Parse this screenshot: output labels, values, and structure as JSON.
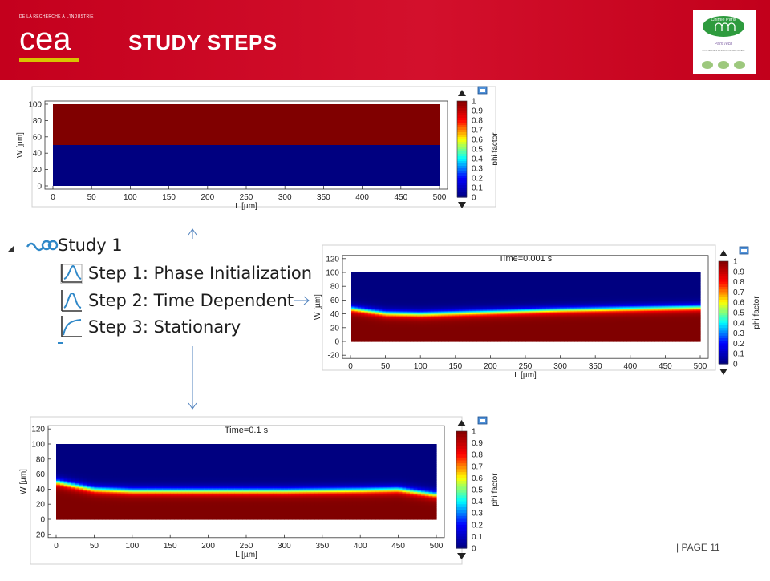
{
  "header": {
    "org_tagline": "DE LA RECHERCHE À L'INDUSTRIE",
    "logo_text": "cea",
    "title": "STUDY STEPS",
    "partner_logo": {
      "line1": "Chimie Paris",
      "line2": "ParisTech",
      "line3": "ÉCOLE NATIONALE SUPÉRIEURE DE CHIMIE DE PARIS"
    }
  },
  "tree": {
    "study_label": "Study 1",
    "steps": [
      {
        "label": "Step 1: Phase Initialization",
        "icon": "phase-init-icon"
      },
      {
        "label": "Step 2: Time Dependent",
        "icon": "time-dependent-icon"
      },
      {
        "label": "Step 3: Stationary",
        "icon": "stationary-icon"
      }
    ]
  },
  "footer": {
    "page_label": "| PAGE 11"
  },
  "chart_data": [
    {
      "type": "heatmap",
      "title": "",
      "xlabel": "L [µm]",
      "ylabel": "W [µm]",
      "xlim": [
        0,
        500
      ],
      "ylim": [
        0,
        100
      ],
      "x_ticks": [
        0,
        50,
        100,
        150,
        200,
        250,
        300,
        350,
        400,
        450,
        500
      ],
      "y_ticks": [
        0,
        20,
        40,
        60,
        80,
        100
      ],
      "colorbar": {
        "label": "phi factor",
        "range": [
          0,
          1
        ],
        "ticks": [
          1,
          0.9,
          0.8,
          0.7,
          0.6,
          0.5,
          0.4,
          0.3,
          0.2,
          0.1,
          0
        ]
      },
      "field": {
        "description": "phi = 1 for W > 50, phi = 0 for W < 50",
        "interface_w": 50
      }
    },
    {
      "type": "heatmap",
      "title": "Time=0.001 s",
      "xlabel": "L [µm]",
      "ylabel": "W [µm]",
      "xlim": [
        0,
        500
      ],
      "ylim": [
        -20,
        120
      ],
      "x_ticks": [
        0,
        50,
        100,
        150,
        200,
        250,
        300,
        350,
        400,
        450,
        500
      ],
      "y_ticks": [
        -20,
        0,
        20,
        40,
        60,
        80,
        100,
        120
      ],
      "colorbar": {
        "label": "phi factor",
        "range": [
          0,
          1
        ],
        "ticks": [
          1,
          0.9,
          0.8,
          0.7,
          0.6,
          0.5,
          0.4,
          0.3,
          0.2,
          0.1,
          0
        ]
      },
      "interface": {
        "L": [
          0,
          50,
          100,
          200,
          300,
          400,
          500
        ],
        "W": [
          48,
          41,
          40,
          43,
          46,
          48,
          50
        ]
      }
    },
    {
      "type": "heatmap",
      "title": "Time=0.1 s",
      "xlabel": "L [µm]",
      "ylabel": "W [µm]",
      "xlim": [
        0,
        500
      ],
      "ylim": [
        -20,
        120
      ],
      "x_ticks": [
        0,
        50,
        100,
        150,
        200,
        250,
        300,
        350,
        400,
        450,
        500
      ],
      "y_ticks": [
        -20,
        0,
        20,
        40,
        60,
        80,
        100,
        120
      ],
      "colorbar": {
        "label": "phi factor",
        "range": [
          0,
          1
        ],
        "ticks": [
          1,
          0.9,
          0.8,
          0.7,
          0.6,
          0.5,
          0.4,
          0.3,
          0.2,
          0.1,
          0
        ]
      },
      "interface": {
        "L": [
          0,
          50,
          100,
          200,
          300,
          400,
          450,
          500
        ],
        "W": [
          50,
          40,
          38,
          38,
          38,
          39,
          40,
          33
        ]
      }
    }
  ]
}
